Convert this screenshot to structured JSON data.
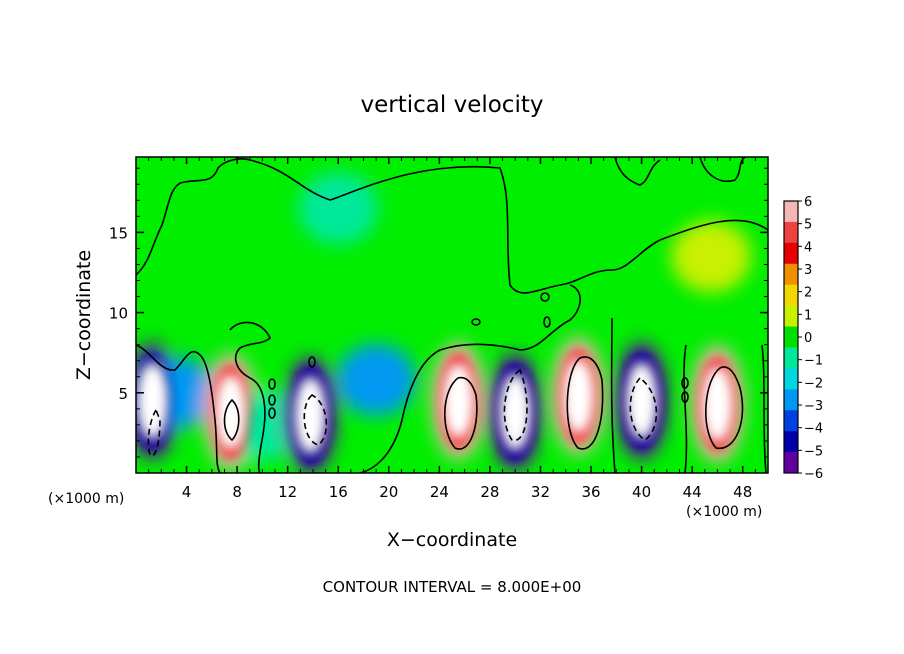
{
  "chart_data": {
    "type": "heatmap",
    "title": "vertical velocity",
    "xlabel": "X−coordinate",
    "ylabel": "Z−coordinate",
    "x_unit_left": "(×1000 m)",
    "x_unit_right": "(×1000 m)",
    "footer": "CONTOUR INTERVAL = 8.000E+00",
    "xlim": [
      0,
      50
    ],
    "ylim": [
      0,
      19.7
    ],
    "x_ticks": [
      4,
      8,
      12,
      16,
      20,
      24,
      28,
      32,
      36,
      40,
      44,
      48
    ],
    "x_tick_labels": [
      "4",
      "8",
      "12",
      "16",
      "20",
      "24",
      "28",
      "32",
      "36",
      "40",
      "44",
      "48"
    ],
    "y_ticks": [
      5,
      10,
      15
    ],
    "y_tick_labels": [
      "5",
      "10",
      "15"
    ],
    "colorbar": {
      "min": -6,
      "max": 6,
      "tick_values": [
        6,
        5,
        4,
        3,
        2,
        1,
        0,
        -1,
        -2,
        -3,
        -4,
        -5,
        -6
      ],
      "tick_labels": [
        "6",
        "5",
        "4",
        "3",
        "2",
        "1",
        "0",
        "−1",
        "−2",
        "−3",
        "−4",
        "−5",
        "−6"
      ],
      "colors": [
        "#f7b6b6",
        "#f04040",
        "#e80000",
        "#f09000",
        "#f0d800",
        "#c8f000",
        "#00e000",
        "#00e89a",
        "#00d8e0",
        "#0098f0",
        "#0040e0",
        "#0000a8",
        "#6000a0"
      ]
    },
    "cells": [
      {
        "x": 1.3,
        "z": 4.5,
        "w": -5.5
      },
      {
        "x": 3.2,
        "z": 5.0,
        "w": -3.0
      },
      {
        "x": 7.5,
        "z": 3.8,
        "w": 6.0
      },
      {
        "x": 10.0,
        "z": 3.0,
        "w": -1.0
      },
      {
        "x": 13.8,
        "z": 3.6,
        "w": -6.0
      },
      {
        "x": 19.0,
        "z": 5.8,
        "w": -3.0
      },
      {
        "x": 25.5,
        "z": 4.5,
        "w": 6.0
      },
      {
        "x": 30.0,
        "z": 3.8,
        "w": -6.0
      },
      {
        "x": 35.0,
        "z": 4.8,
        "w": 6.0
      },
      {
        "x": 40.0,
        "z": 4.5,
        "w": -6.0
      },
      {
        "x": 46.0,
        "z": 4.3,
        "w": 6.0
      },
      {
        "x": 45.5,
        "z": 13.5,
        "w": 1.0
      },
      {
        "x": 16.0,
        "z": 16.5,
        "w": -1.0
      }
    ]
  }
}
